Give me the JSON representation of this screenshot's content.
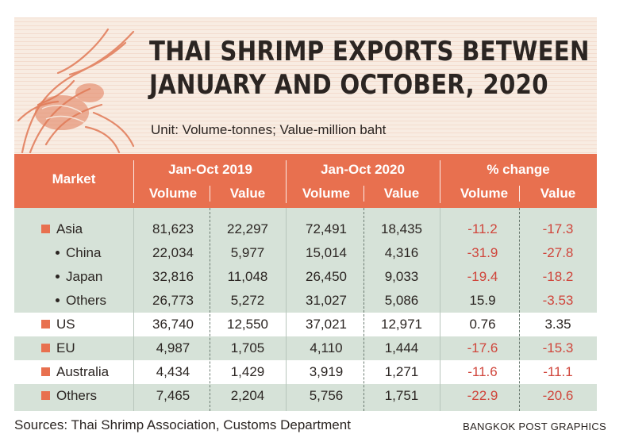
{
  "chart_data": {
    "type": "table",
    "title": "THAI SHRIMP EXPORTS BETWEEN JANUARY AND OCTOBER, 2020",
    "title_lines": [
      "THAI SHRIMP EXPORTS BETWEEN",
      "JANUARY AND OCTOBER, 2020"
    ],
    "subtitle": "Unit: Volume-tonnes; Value-million baht",
    "header": {
      "market": "Market",
      "groups": [
        "Jan-Oct 2019",
        "Jan-Oct 2020",
        "% change"
      ],
      "sub": [
        "Volume",
        "Value",
        "Volume",
        "Value",
        "Volume",
        "Value"
      ]
    },
    "rows": [
      {
        "market": "Asia",
        "level": "main",
        "v2019": "81,623",
        "val2019": "22,297",
        "v2020": "72,491",
        "val2020": "18,435",
        "pv": "-11.2",
        "pval": "-17.3"
      },
      {
        "market": "China",
        "level": "sub",
        "v2019": "22,034",
        "val2019": "5,977",
        "v2020": "15,014",
        "val2020": "4,316",
        "pv": "-31.9",
        "pval": "-27.8"
      },
      {
        "market": "Japan",
        "level": "sub",
        "v2019": "32,816",
        "val2019": "11,048",
        "v2020": "26,450",
        "val2020": "9,033",
        "pv": "-19.4",
        "pval": "-18.2"
      },
      {
        "market": "Others",
        "level": "sub",
        "v2019": "26,773",
        "val2019": "5,272",
        "v2020": "31,027",
        "val2020": "5,086",
        "pv": "15.9",
        "pval": "-3.53"
      },
      {
        "market": "US",
        "level": "main",
        "v2019": "36,740",
        "val2019": "12,550",
        "v2020": "37,021",
        "val2020": "12,971",
        "pv": "0.76",
        "pval": "3.35"
      },
      {
        "market": "EU",
        "level": "main",
        "v2019": "4,987",
        "val2019": "1,705",
        "v2020": "4,110",
        "val2020": "1,444",
        "pv": "-17.6",
        "pval": "-15.3"
      },
      {
        "market": "Australia",
        "level": "main",
        "v2019": "4,434",
        "val2019": "1,429",
        "v2020": "3,919",
        "val2020": "1,271",
        "pv": "-11.6",
        "pval": "-11.1"
      },
      {
        "market": "Others",
        "level": "main",
        "v2019": "7,465",
        "val2019": "2,204",
        "v2020": "5,756",
        "val2020": "1,751",
        "pv": "-22.9",
        "pval": "-20.6"
      }
    ]
  },
  "footer": {
    "sources": "Sources:  Thai Shrimp Association, Customs Department",
    "credit": "BANGKOK POST GRAPHICS"
  },
  "colors": {
    "header": "#e8704f",
    "body": "#d6e2d8",
    "negative": "#d0453b",
    "text": "#2b2522"
  }
}
